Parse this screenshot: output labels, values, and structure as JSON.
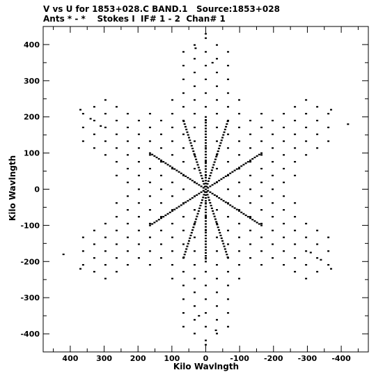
{
  "chart_data": {
    "type": "scatter",
    "title": "V vs U for 1853+028.C BAND.1   Source:1853+028",
    "subtitle": "Ants * - *    Stokes I  IF# 1 - 2  Chan# 1",
    "xlabel": "Kilo Wavlngth",
    "ylabel": "Kilo Wavlngth",
    "xlim": [
      480,
      -480
    ],
    "ylim": [
      -450,
      450
    ],
    "xticks": [
      400,
      300,
      200,
      100,
      0,
      -100,
      -200,
      -300,
      -400
    ],
    "xtick_labels": [
      "400",
      "300",
      "200",
      "100",
      "0",
      "-100",
      "-200",
      "-300",
      "-400"
    ],
    "yticks": [
      400,
      300,
      200,
      100,
      0,
      -100,
      -200,
      -300,
      -400
    ],
    "ytick_labels": [
      "400",
      "300",
      "200",
      "100",
      "0",
      "-100",
      "-200",
      "-300",
      "-400"
    ],
    "grid": false,
    "legend": "none",
    "marker_color": "#000000",
    "pattern": "snapshot uv coverage with 6-fold symmetry, points on spokes at angles 30,90,150,210,270,330 deg plus inner lattice",
    "spoke_points": [
      {
        "u": 0,
        "v": 430
      },
      {
        "u": 30,
        "v": 390
      },
      {
        "u": -20,
        "v": 350
      },
      {
        "u": 370,
        "v": 220
      },
      {
        "u": 340,
        "v": 195
      },
      {
        "u": 310,
        "v": 175
      },
      {
        "u": -370,
        "v": -220
      },
      {
        "u": -340,
        "v": -195
      },
      {
        "u": -310,
        "v": -175
      },
      {
        "u": 0,
        "v": -430
      },
      {
        "u": -30,
        "v": -390
      },
      {
        "u": 20,
        "v": -350
      },
      {
        "u": 370,
        "v": -220
      },
      {
        "u": 420,
        "v": -180
      },
      {
        "u": -370,
        "v": 220
      },
      {
        "u": -420,
        "v": 180
      }
    ]
  }
}
